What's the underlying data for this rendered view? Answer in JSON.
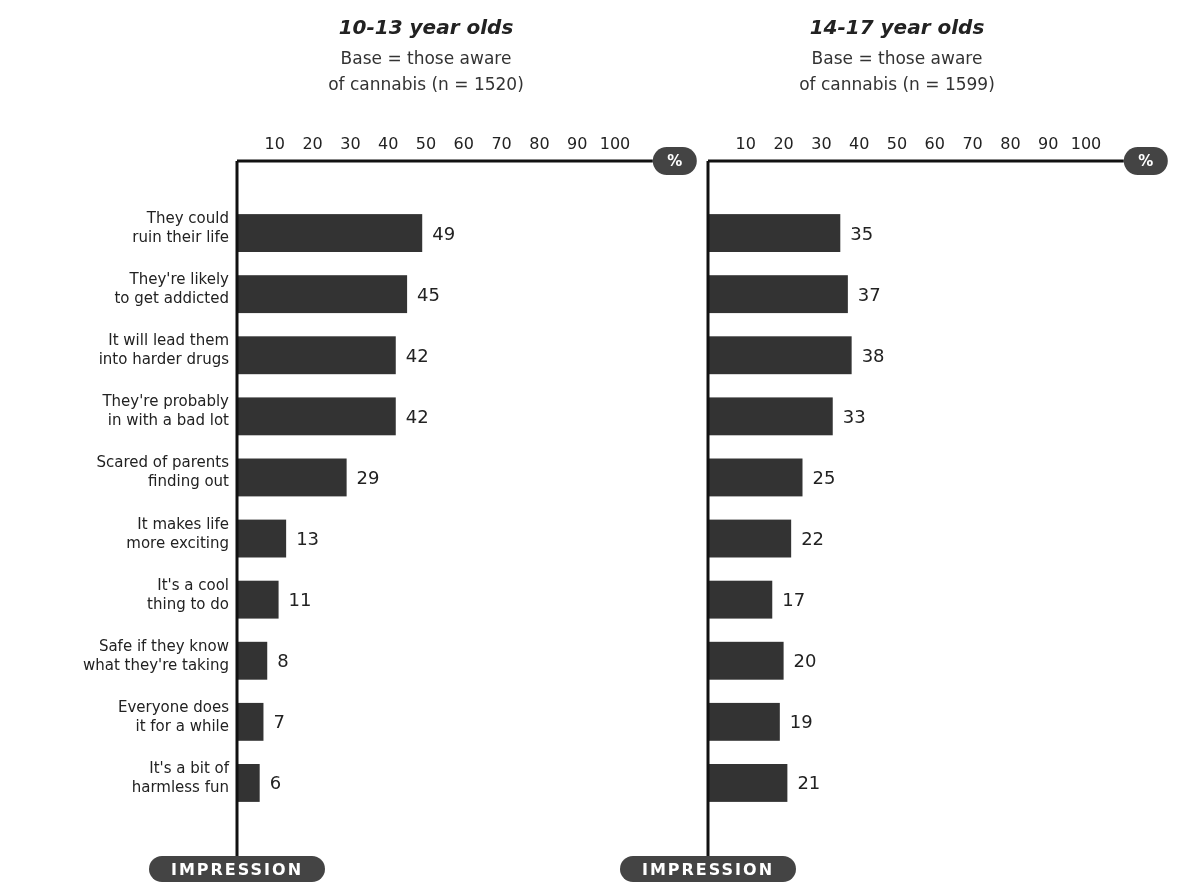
{
  "chart_data": [
    {
      "type": "bar",
      "orientation": "horizontal",
      "title": "10-13 year olds",
      "subtitle": "Base = those aware of cannabis (n = 1520)",
      "xlabel": "%",
      "ylabel": "IMPRESSION",
      "categories": [
        "They could ruin their life",
        "They're likely to get addicted",
        "It will lead them into harder drugs",
        "They're probably in with a bad lot",
        "Scared of parents finding out",
        "It makes life more exciting",
        "It's a cool thing to do",
        "Safe if they know what they're taking",
        "Everyone does it for a while",
        "It's a bit of harmless fun"
      ],
      "values": [
        49,
        45,
        42,
        42,
        29,
        13,
        11,
        8,
        7,
        6
      ],
      "color": "#333333",
      "xlim": [
        0,
        110
      ],
      "xticks": [
        10,
        20,
        30,
        40,
        50,
        60,
        70,
        80,
        90,
        100
      ],
      "data_labels": true,
      "grid": false
    },
    {
      "type": "bar",
      "orientation": "horizontal",
      "title": "14-17 year olds",
      "subtitle": "Base = those aware of cannabis (n = 1599)",
      "xlabel": "%",
      "ylabel": "IMPRESSION",
      "categories": [
        null,
        null,
        null,
        null,
        null,
        null,
        null,
        null,
        null,
        null
      ],
      "values": [
        35,
        37,
        38,
        33,
        25,
        22,
        17,
        20,
        19,
        21
      ],
      "color": "#333333",
      "xlim": [
        0,
        110
      ],
      "xticks": [
        10,
        20,
        30,
        40,
        50,
        60,
        70,
        80,
        90,
        100
      ],
      "data_labels": true,
      "grid": false,
      "tick_labels": "x"
    }
  ]
}
